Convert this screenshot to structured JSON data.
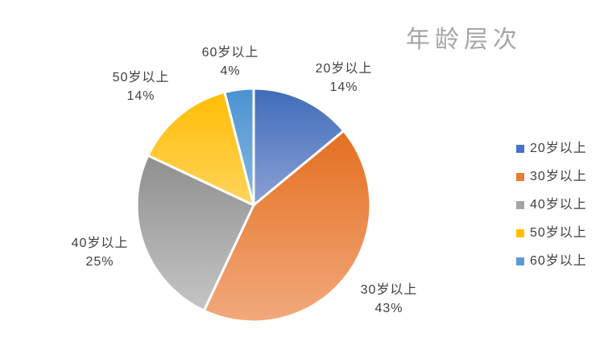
{
  "chart_data": {
    "type": "pie",
    "title": "年龄层次",
    "categories": [
      "20岁以上",
      "30岁以上",
      "40岁以上",
      "50岁以上",
      "60岁以上"
    ],
    "values": [
      14,
      43,
      25,
      14,
      4
    ],
    "unit": "%",
    "colors": [
      "#4472C4",
      "#ED7D31",
      "#A5A5A5",
      "#FFC000",
      "#5B9BD5"
    ],
    "slice_gradients": [
      [
        "#3F6CB9",
        "#8CA0D6"
      ],
      [
        "#E46F20",
        "#F2A97C"
      ],
      [
        "#8F8F8F",
        "#C5C5C5"
      ],
      [
        "#FFBD05",
        "#FFD45B"
      ],
      [
        "#4B92D0",
        "#87B8E5"
      ]
    ],
    "start_angle": 0,
    "direction": "clockwise",
    "legend_position": "right",
    "title_color": "#A6A6A6",
    "label_color": "#404040"
  },
  "slice_labels": [
    {
      "name": "20岁以上",
      "value": "14%"
    },
    {
      "name": "30岁以上",
      "value": "43%"
    },
    {
      "name": "40岁以上",
      "value": "25%"
    },
    {
      "name": "50岁以上",
      "value": "14%"
    },
    {
      "name": "60岁以上",
      "value": "4%"
    }
  ],
  "legend": {
    "items": [
      {
        "label": "20岁以上",
        "color": "#4472C4"
      },
      {
        "label": "30岁以上",
        "color": "#ED7D31"
      },
      {
        "label": "40岁以上",
        "color": "#A5A5A5"
      },
      {
        "label": "50岁以上",
        "color": "#FFC000"
      },
      {
        "label": "60岁以上",
        "color": "#5B9BD5"
      }
    ]
  }
}
